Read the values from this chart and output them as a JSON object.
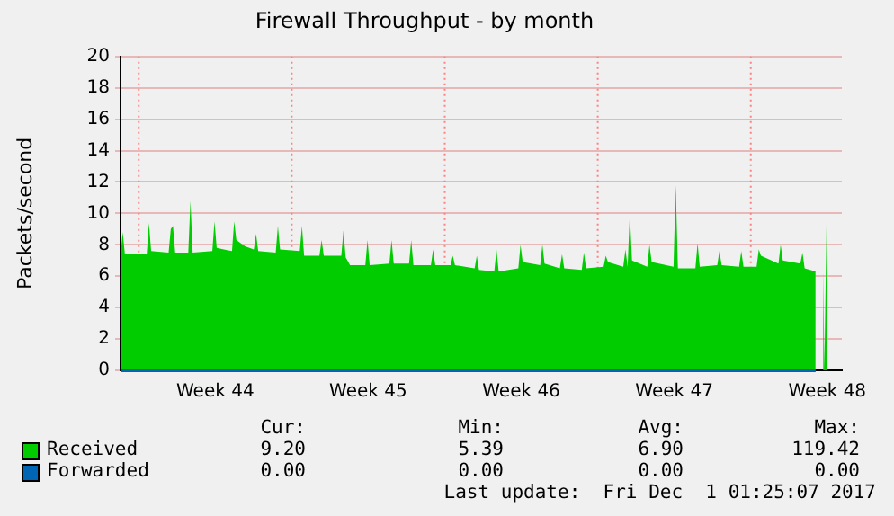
{
  "chart_data": {
    "type": "area",
    "title": "Firewall Throughput - by month",
    "ylabel": "Packets/second",
    "xlim": [
      "2017-10-29T04:00",
      "2017-12-01T04:00"
    ],
    "xticks": [
      {
        "value": "2017-11-02T12:00",
        "label": "Week 44"
      },
      {
        "value": "2017-11-09T12:00",
        "label": "Week 45"
      },
      {
        "value": "2017-11-16T12:00",
        "label": "Week 46"
      },
      {
        "value": "2017-11-23T12:00",
        "label": "Week 47"
      },
      {
        "value": "2017-11-30T12:00",
        "label": "Week 48"
      }
    ],
    "ylim": [
      0,
      20
    ],
    "yticks": [
      0,
      2,
      4,
      6,
      8,
      10,
      12,
      14,
      16,
      18,
      20
    ],
    "grid": "y",
    "legend": "bottom",
    "ref_lines": [
      {
        "axis": "x",
        "value": "2017-10-30T00:00",
        "color": "#ff8080",
        "line_style": "dotted"
      },
      {
        "axis": "x",
        "value": "2017-11-06T00:00",
        "color": "#ff8080",
        "line_style": "dotted"
      },
      {
        "axis": "x",
        "value": "2017-11-13T00:00",
        "color": "#ff8080",
        "line_style": "dotted"
      },
      {
        "axis": "x",
        "value": "2017-11-20T00:00",
        "color": "#ff8080",
        "line_style": "dotted"
      },
      {
        "axis": "x",
        "value": "2017-11-27T00:00",
        "color": "#ff8080",
        "line_style": "dotted"
      }
    ],
    "series": [
      {
        "name": "Received",
        "color": "#00cc00",
        "x": [
          "2017-10-29T04:00",
          "2017-10-29T06:24",
          "2017-10-29T08:48",
          "2017-10-30T08:48",
          "2017-10-30T11:12",
          "2017-10-30T13:36",
          "2017-10-31T08:48",
          "2017-10-31T11:12",
          "2017-10-31T13:36",
          "2017-10-31T16:00",
          "2017-11-01T06:24",
          "2017-11-01T08:48",
          "2017-11-01T11:12",
          "2017-11-02T08:48",
          "2017-11-02T11:12",
          "2017-11-02T13:36",
          "2017-11-03T06:24",
          "2017-11-03T08:48",
          "2017-11-03T11:12",
          "2017-11-03T20:48",
          "2017-11-04T06:24",
          "2017-11-04T08:48",
          "2017-11-04T11:12",
          "2017-11-05T06:24",
          "2017-11-05T08:48",
          "2017-11-05T11:12",
          "2017-11-06T08:48",
          "2017-11-06T11:12",
          "2017-11-06T13:36",
          "2017-11-07T06:24",
          "2017-11-07T08:48",
          "2017-11-07T11:12",
          "2017-11-08T06:24",
          "2017-11-08T08:48",
          "2017-11-08T11:12",
          "2017-11-08T16:00",
          "2017-11-09T08:48",
          "2017-11-09T11:12",
          "2017-11-09T13:36",
          "2017-11-10T11:12",
          "2017-11-10T13:36",
          "2017-11-10T16:00",
          "2017-11-11T08:48",
          "2017-11-11T11:12",
          "2017-11-11T13:36",
          "2017-11-12T08:48",
          "2017-11-12T11:12",
          "2017-11-12T13:36",
          "2017-11-13T06:24",
          "2017-11-13T08:48",
          "2017-11-13T11:12",
          "2017-11-14T08:48",
          "2017-11-14T11:12",
          "2017-11-14T13:36",
          "2017-11-15T06:24",
          "2017-11-15T08:48",
          "2017-11-15T11:12",
          "2017-11-16T08:48",
          "2017-11-16T11:12",
          "2017-11-16T13:36",
          "2017-11-17T08:48",
          "2017-11-17T11:12",
          "2017-11-17T13:36",
          "2017-11-18T06:24",
          "2017-11-18T08:48",
          "2017-11-18T11:12",
          "2017-11-19T06:24",
          "2017-11-19T08:48",
          "2017-11-19T11:12",
          "2017-11-20T06:24",
          "2017-11-20T08:48",
          "2017-11-20T11:12",
          "2017-11-21T04:00",
          "2017-11-21T06:24",
          "2017-11-21T08:48",
          "2017-11-21T11:12",
          "2017-11-21T13:36",
          "2017-11-22T06:24",
          "2017-11-22T08:48",
          "2017-11-22T11:12",
          "2017-11-23T11:12",
          "2017-11-23T13:36",
          "2017-11-23T16:00",
          "2017-11-24T11:12",
          "2017-11-24T13:36",
          "2017-11-24T16:00",
          "2017-11-25T11:12",
          "2017-11-25T13:36",
          "2017-11-25T16:00",
          "2017-11-26T11:12",
          "2017-11-26T13:36",
          "2017-11-26T16:00",
          "2017-11-27T06:24",
          "2017-11-27T08:48",
          "2017-11-27T11:12",
          "2017-11-28T06:24",
          "2017-11-28T08:48",
          "2017-11-28T11:12",
          "2017-11-29T06:24",
          "2017-11-29T08:48",
          "2017-11-29T11:12",
          "2017-11-29T23:12",
          "2017-11-30T00:24",
          "2017-11-30T06:24",
          "2017-11-30T07:36",
          "2017-11-30T08:48",
          "2017-11-30T10:00",
          "2017-11-30T11:12",
          "2017-11-30T12:24"
        ],
        "values": [
          7.4,
          8.8,
          7.4,
          7.4,
          9.4,
          7.6,
          7.5,
          9.0,
          9.2,
          7.5,
          7.5,
          10.8,
          7.5,
          7.6,
          9.5,
          7.8,
          7.6,
          9.5,
          8.3,
          7.9,
          7.7,
          8.7,
          7.6,
          7.5,
          9.2,
          7.7,
          7.6,
          9.2,
          7.3,
          7.3,
          8.3,
          7.3,
          7.3,
          8.9,
          7.2,
          6.7,
          6.7,
          8.3,
          6.7,
          6.8,
          8.3,
          6.8,
          6.8,
          8.3,
          6.7,
          6.7,
          7.7,
          6.7,
          6.7,
          7.3,
          6.7,
          6.5,
          7.3,
          6.4,
          6.3,
          7.7,
          6.3,
          6.5,
          8.0,
          6.9,
          6.7,
          8.0,
          6.8,
          6.5,
          7.4,
          6.5,
          6.4,
          7.5,
          6.5,
          6.6,
          7.3,
          6.9,
          6.6,
          7.7,
          6.6,
          10.0,
          7.0,
          6.6,
          8.0,
          6.9,
          6.6,
          11.8,
          6.5,
          6.5,
          8.1,
          6.6,
          6.7,
          7.6,
          6.7,
          6.6,
          7.6,
          6.6,
          6.6,
          7.7,
          7.3,
          6.8,
          8.0,
          7.0,
          6.8,
          7.5,
          6.5,
          6.3,
          null,
          0,
          6.4,
          0,
          0,
          9.3,
          0
        ]
      },
      {
        "name": "Forwarded",
        "color": "#0066b3",
        "type": "line",
        "x": [
          "2017-10-29T04:00",
          "2017-11-29T23:12"
        ],
        "values": [
          0,
          0
        ]
      }
    ],
    "annotations": [
      "Cur:",
      "Min:",
      "Avg:",
      "Max:",
      "9.20",
      "5.39",
      "6.90",
      "119.42",
      "0.00",
      "0.00",
      "0.00",
      "0.00",
      "Last update:  Fri Dec  1 01:25:07 2017"
    ]
  }
}
